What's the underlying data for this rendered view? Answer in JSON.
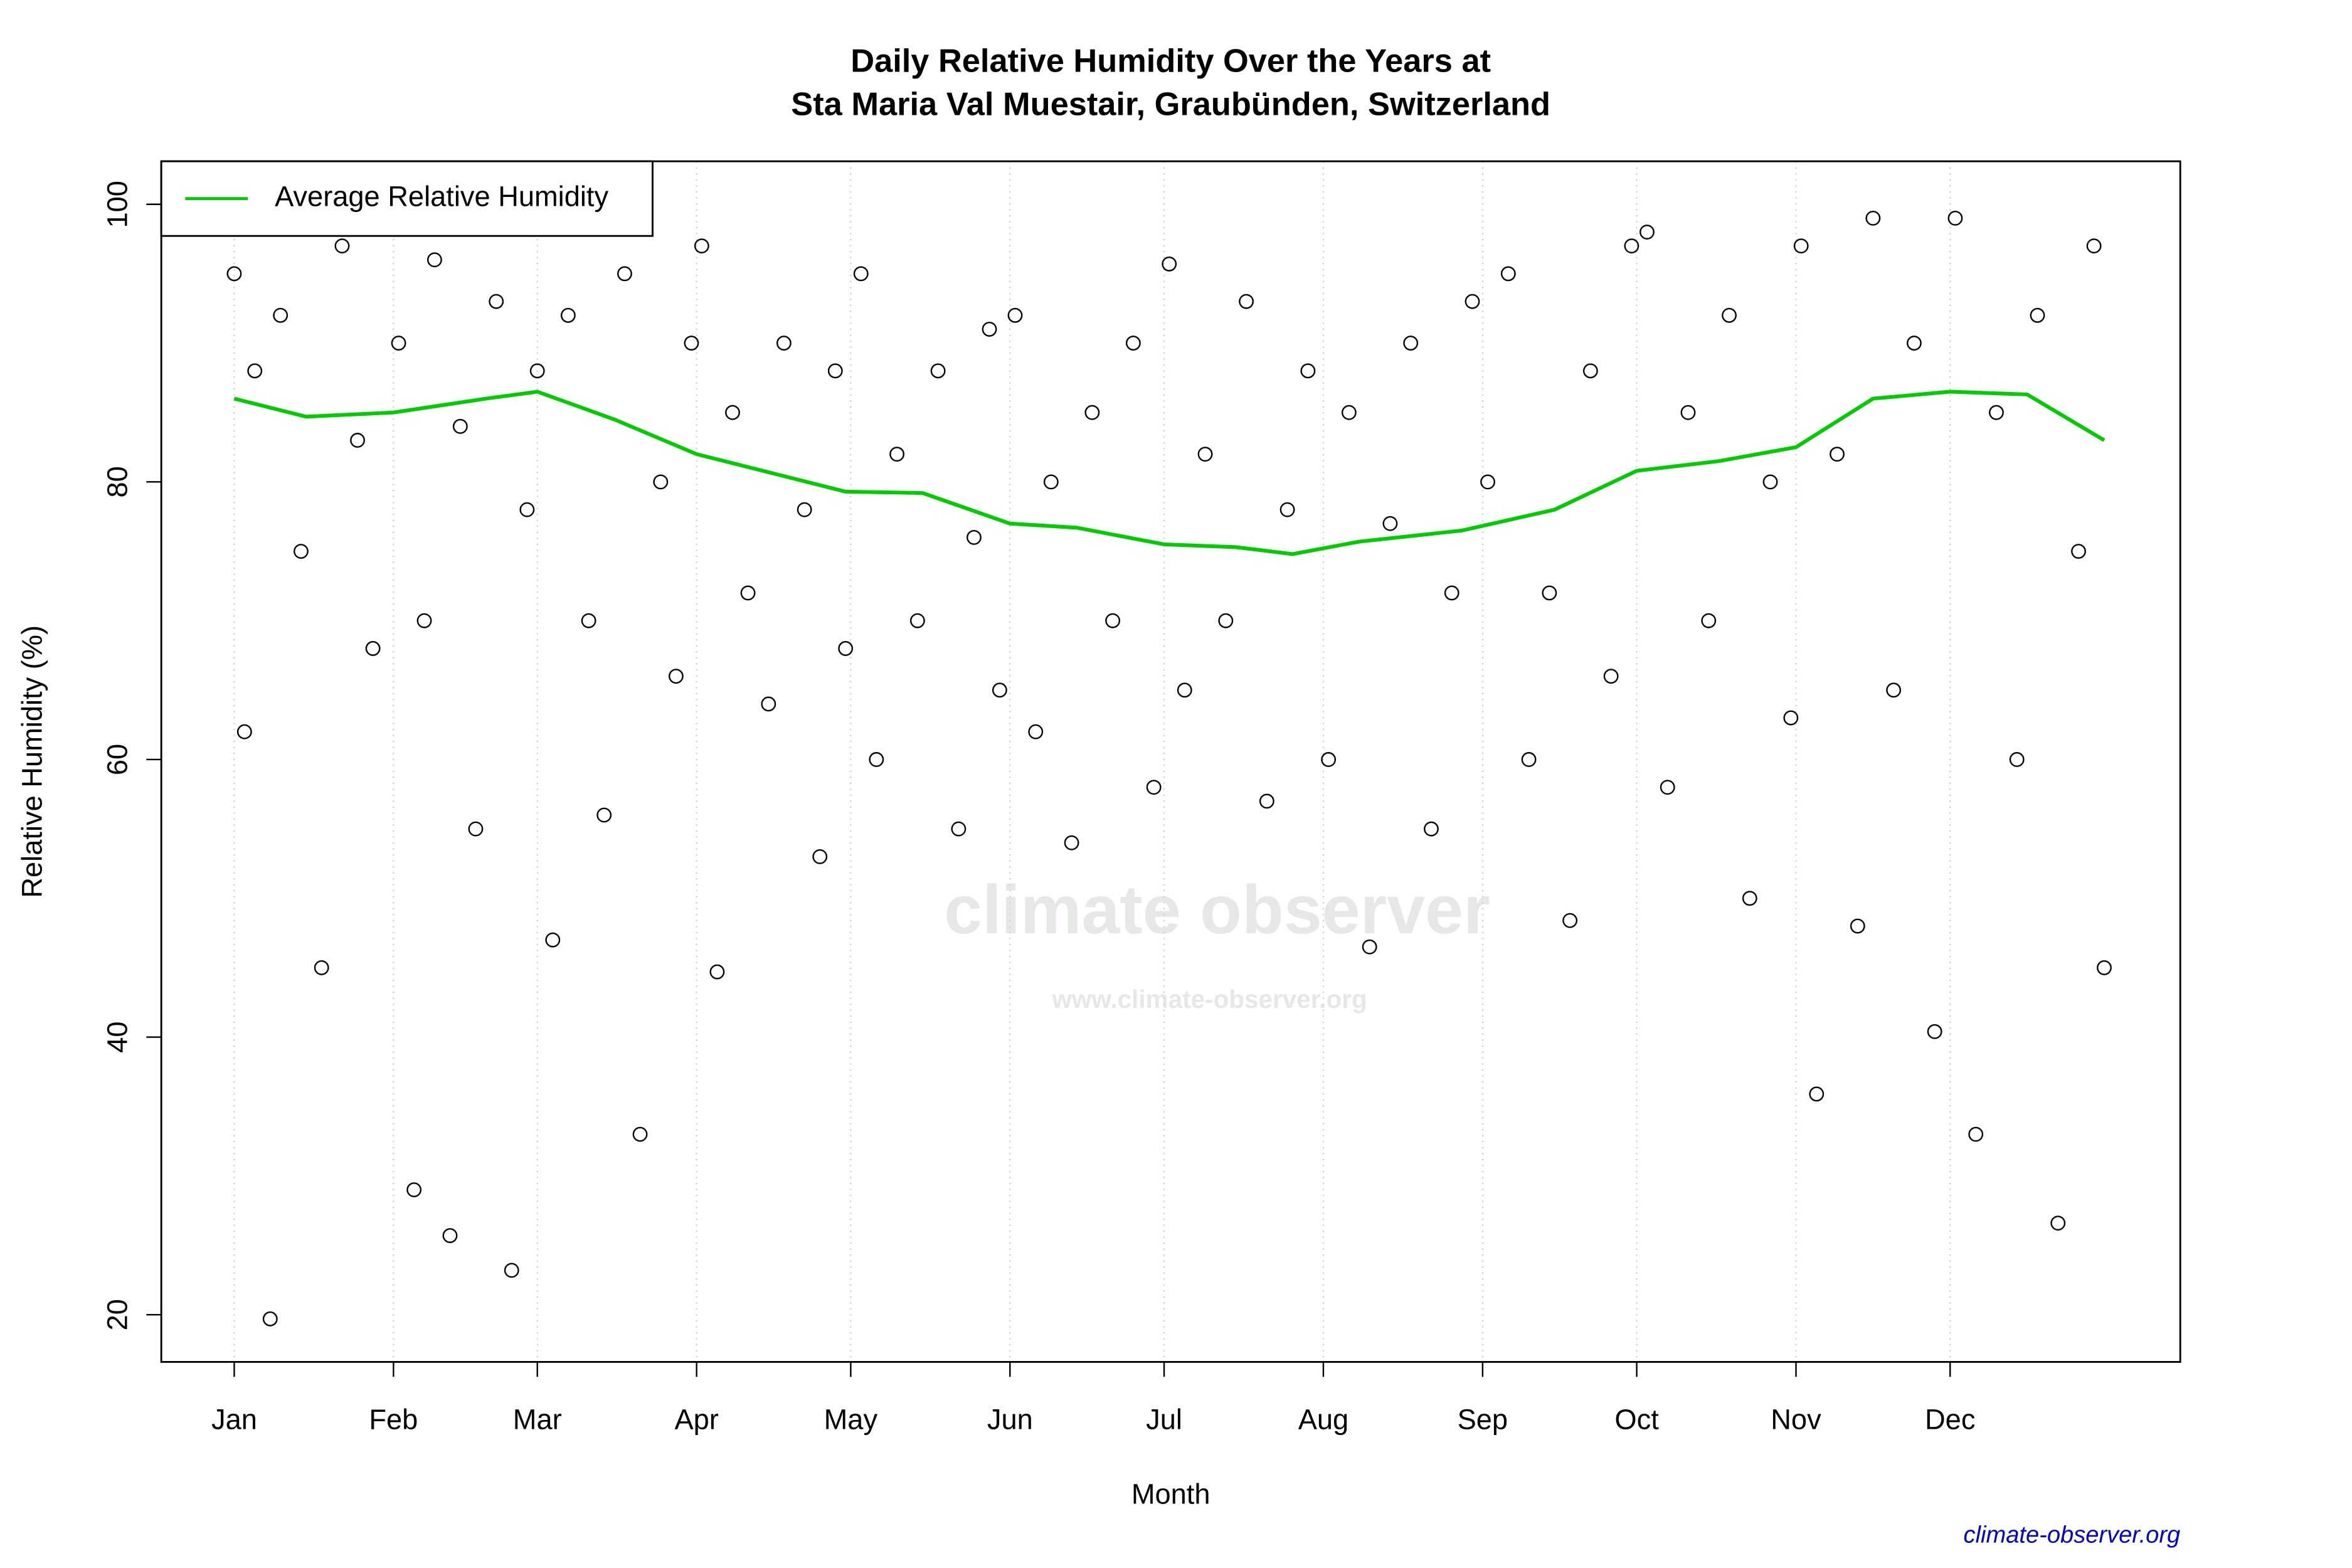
{
  "chart_data": {
    "type": "scatter",
    "title": [
      "Daily Relative Humidity Over the Years at",
      "Sta Maria Val Muestair, Graubünden, Switzerland"
    ],
    "xlabel": "Month",
    "ylabel": "Relative Humidity  (%)",
    "watermark": "climate observer",
    "watermark_url": "www.climate-observer.org",
    "source": "climate-observer.org",
    "xlim": [
      -13.2,
      379.8
    ],
    "ylim": [
      16.6,
      103.1
    ],
    "xticks": [
      {
        "value": 1,
        "label": "Jan"
      },
      {
        "value": 32,
        "label": "Feb"
      },
      {
        "value": 60,
        "label": "Mar"
      },
      {
        "value": 91,
        "label": "Apr"
      },
      {
        "value": 121,
        "label": "May"
      },
      {
        "value": 152,
        "label": "Jun"
      },
      {
        "value": 182,
        "label": "Jul"
      },
      {
        "value": 213,
        "label": "Aug"
      },
      {
        "value": 244,
        "label": "Sep"
      },
      {
        "value": 274,
        "label": "Oct"
      },
      {
        "value": 305,
        "label": "Nov"
      },
      {
        "value": 335,
        "label": "Dec"
      }
    ],
    "yticks": [
      20,
      40,
      60,
      80,
      100
    ],
    "grid": "x",
    "legend": "top-left",
    "points": {
      "color": "#000000",
      "x": [
        1,
        3,
        5,
        8,
        10,
        14,
        18,
        22,
        25,
        28,
        33,
        36,
        38,
        40,
        43,
        45,
        48,
        52,
        55,
        58,
        60,
        63,
        66,
        70,
        73,
        77,
        80,
        84,
        87,
        90,
        92,
        95,
        98,
        101,
        105,
        108,
        112,
        115,
        118,
        120,
        123,
        126,
        130,
        134,
        138,
        142,
        145,
        148,
        150,
        153,
        157,
        160,
        164,
        168,
        172,
        176,
        180,
        183,
        186,
        190,
        194,
        198,
        202,
        206,
        210,
        214,
        218,
        222,
        226,
        230,
        234,
        238,
        242,
        245,
        249,
        253,
        257,
        261,
        265,
        269,
        273,
        276,
        280,
        284,
        288,
        292,
        296,
        300,
        304,
        306,
        309,
        313,
        317,
        320,
        324,
        328,
        332,
        336,
        340,
        344,
        348,
        352,
        356,
        360,
        363,
        365
      ],
      "y": [
        95,
        62,
        88,
        19.7,
        92,
        75,
        45,
        97,
        83,
        68,
        90,
        29,
        70,
        96,
        25.7,
        84,
        55,
        93,
        23.2,
        78,
        88,
        47,
        92,
        70,
        56,
        95,
        33,
        80,
        66,
        90,
        97,
        44.7,
        85,
        72,
        64,
        90,
        78,
        53,
        88,
        68,
        95,
        60,
        82,
        70,
        88,
        55,
        76,
        91,
        65,
        92,
        62,
        80,
        54,
        85,
        70,
        90,
        58,
        95.7,
        65,
        82,
        70,
        93,
        57,
        78,
        88,
        60,
        85,
        46.5,
        77,
        90,
        55,
        72,
        93,
        80,
        95,
        60,
        72,
        48.4,
        88,
        66,
        97,
        98,
        58,
        85,
        70,
        92,
        50,
        80,
        63,
        97,
        35.9,
        82,
        48,
        99,
        65,
        90,
        40.4,
        99,
        33,
        85,
        60,
        92,
        26.6,
        75,
        97,
        45
      ]
    },
    "series": [
      {
        "name": "Average Relative Humidity",
        "color": "#00cc00",
        "x": [
          1,
          15,
          32,
          50,
          60,
          75,
          91,
          120,
          135,
          152,
          165,
          182,
          196,
          207,
          220,
          240,
          258,
          274,
          290,
          305,
          320,
          335,
          350,
          365
        ],
        "values": [
          86,
          84.7,
          85,
          86,
          86.5,
          84.5,
          82,
          79.3,
          79.2,
          77,
          76.7,
          75.5,
          75.3,
          74.8,
          75.7,
          76.5,
          78,
          80.8,
          81.5,
          82.5,
          86,
          86.5,
          86.3,
          83
        ]
      }
    ]
  }
}
